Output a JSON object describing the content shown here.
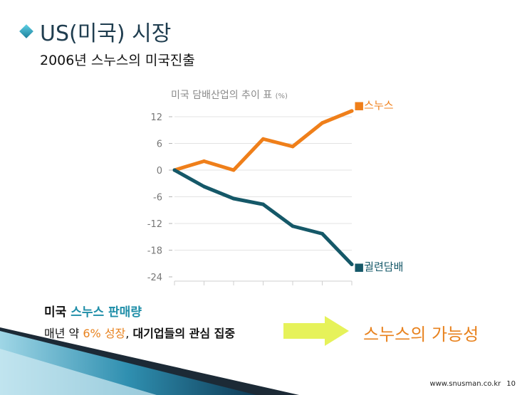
{
  "slide": {
    "title": "US(미국) 시장",
    "subtitle": "2006년 스누스의 미국진출",
    "bottom_heading_prefix": "미국 ",
    "bottom_heading_accent": "스누스 판매량",
    "bottom_text_1": "매년 약 ",
    "bottom_text_orange": "6% 성장",
    "bottom_text_2": ", ",
    "bottom_text_bold": "대기업들의 관심 집중",
    "result_text": "스누스의 가능성",
    "footer_site": "www.snusman.co.kr",
    "footer_page": "10"
  },
  "colors": {
    "snus": "#ef7f1a",
    "cigarette": "#155868",
    "arrow": "#e6f25a"
  },
  "chart_data": {
    "type": "line",
    "title": "미국 담배산업의 추이 표",
    "title_unit": "(%)",
    "x": [
      1,
      2,
      3,
      4,
      5,
      6,
      7
    ],
    "ylim": [
      -24,
      12
    ],
    "yticks": [
      "12",
      "6",
      "0",
      "-6",
      "-12",
      "-18",
      "-24"
    ],
    "grid": true,
    "series": [
      {
        "name": "스누스",
        "marker": "■",
        "color": "#ef7f1a",
        "values": [
          0,
          2,
          0,
          7,
          5.3,
          10.6,
          13.3
        ]
      },
      {
        "name": "궐련담배",
        "marker": "■",
        "color": "#155868",
        "values": [
          0,
          -3.7,
          -6.4,
          -7.7,
          -12.6,
          -14.3,
          -21.2
        ]
      }
    ]
  }
}
